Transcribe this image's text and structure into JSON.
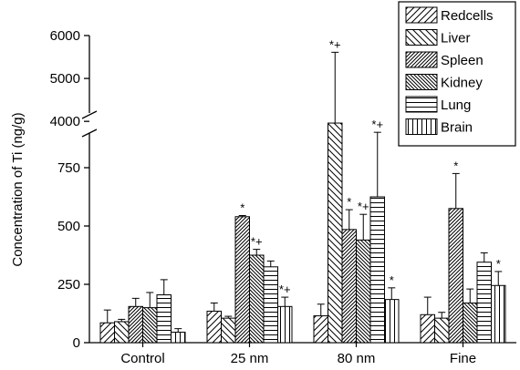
{
  "chart_data": {
    "type": "bar",
    "title": "",
    "xlabel": "",
    "ylabel": "Concentration of Ti (ng/g)",
    "categories": [
      "Control",
      "25 nm",
      "80 nm",
      "Fine"
    ],
    "axis_break": {
      "lower_range": [
        0,
        875
      ],
      "upper_range": [
        3600,
        6000
      ]
    },
    "y_ticks": [
      0,
      250,
      500,
      750,
      4000,
      5000,
      6000
    ],
    "grid": false,
    "legend_position": "top-right",
    "series": [
      {
        "name": "Redcells",
        "pattern": "diag-forward",
        "values": [
          85,
          135,
          115,
          120
        ],
        "errors": [
          55,
          35,
          50,
          75
        ],
        "annotations": [
          "",
          "",
          "",
          ""
        ]
      },
      {
        "name": "Liver",
        "pattern": "diag-back",
        "values": [
          90,
          105,
          3960,
          105
        ],
        "errors": [
          10,
          8,
          1650,
          25
        ],
        "annotations": [
          "",
          "",
          "*+",
          ""
        ]
      },
      {
        "name": "Spleen",
        "pattern": "diag-forward-dense",
        "values": [
          155,
          540,
          485,
          575
        ],
        "errors": [
          35,
          5,
          85,
          150
        ],
        "annotations": [
          "",
          "*",
          "*",
          "*"
        ]
      },
      {
        "name": "Kidney",
        "pattern": "diag-back-dense",
        "values": [
          150,
          375,
          440,
          170
        ],
        "errors": [
          65,
          25,
          110,
          60
        ],
        "annotations": [
          "",
          "*+",
          "*+",
          ""
        ]
      },
      {
        "name": "Lung",
        "pattern": "horizontal",
        "values": [
          205,
          325,
          625,
          345
        ],
        "errors": [
          65,
          25,
          3120,
          40
        ],
        "annotations": [
          "",
          "",
          "*+",
          ""
        ]
      },
      {
        "name": "Brain",
        "pattern": "vertical",
        "values": [
          45,
          155,
          185,
          245
        ],
        "errors": [
          15,
          40,
          50,
          60
        ],
        "annotations": [
          "",
          "*+",
          "*",
          "*"
        ]
      }
    ]
  }
}
